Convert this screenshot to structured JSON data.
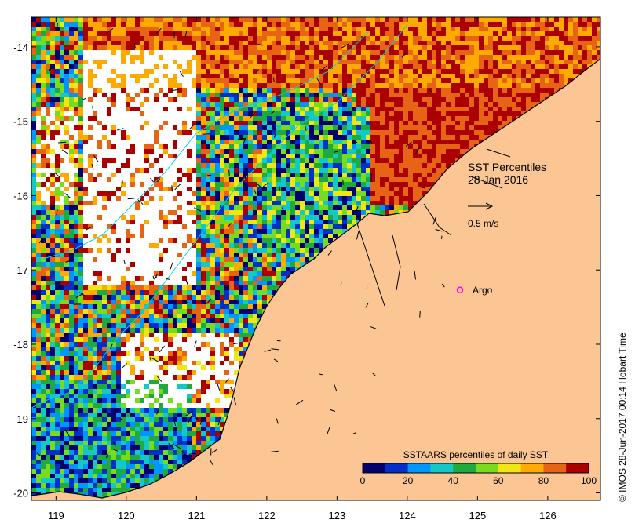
{
  "map": {
    "title_line1": "SST Percentiles",
    "title_line2": "28 Jan 2016",
    "vector_scale_label": "0.5 m/s",
    "argo_label": "Argo",
    "credit": "© IMOS 28-Jun-2017 00:14 Hobart Time",
    "colors": {
      "land": "#fbc693",
      "ocean_nodata": "#ffffff",
      "argo_marker": "#ff00ff",
      "coastline": "#000000",
      "contour": "#00d2e6"
    },
    "axes": {
      "longitude_ticks": [
        "119",
        "120",
        "121",
        "122",
        "123",
        "124",
        "125",
        "126"
      ],
      "latitude_ticks": [
        "-14",
        "-15",
        "-16",
        "-17",
        "-18",
        "-19",
        "-20"
      ],
      "lon_range": [
        118.65,
        126.75
      ],
      "lat_range": [
        -20.1,
        -13.6
      ]
    },
    "argo": {
      "lon": 124.75,
      "lat": -17.27
    }
  },
  "colorbar": {
    "title": "SSTAARS percentiles of daily SST",
    "tick_labels": [
      "0",
      "20",
      "40",
      "60",
      "80",
      "100"
    ],
    "range": [
      0,
      100
    ],
    "colors": [
      "#00006e",
      "#0030c8",
      "#0096ff",
      "#14c8c8",
      "#1eaa3c",
      "#78dc1e",
      "#f0e614",
      "#ffaa00",
      "#e66414",
      "#aa0000"
    ]
  }
}
